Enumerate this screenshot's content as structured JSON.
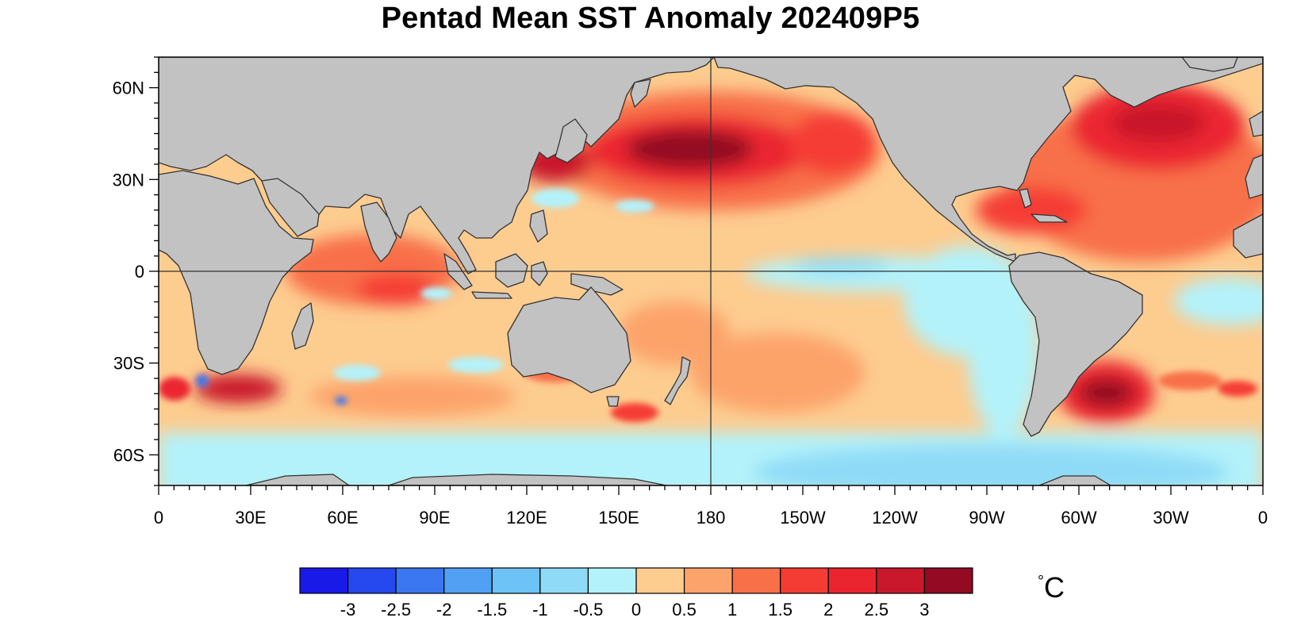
{
  "title": "Pentad Mean SST Anomaly 202409P5",
  "lat_labels": [
    "60N",
    "30N",
    "0",
    "30S",
    "60S"
  ],
  "lon_labels": [
    "0",
    "30E",
    "60E",
    "90E",
    "120E",
    "150E",
    "180",
    "150W",
    "120W",
    "90W",
    "60W",
    "30W",
    "0"
  ],
  "colorbar": {
    "labels": [
      "-3",
      "-2.5",
      "-2",
      "-1.5",
      "-1",
      "-0.5",
      "0",
      "0.5",
      "1",
      "1.5",
      "2",
      "2.5",
      "3"
    ],
    "colors": [
      "#1919e8",
      "#2549ee",
      "#3a77f0",
      "#51a0f4",
      "#6dc2f6",
      "#8fdbf7",
      "#b3f2fa",
      "#fdcc8f",
      "#fca36b",
      "#f87048",
      "#f53c34",
      "#eb2530",
      "#c9182b",
      "#930a22"
    ],
    "unit_symbol": "°",
    "unit_letter": "C"
  },
  "colors": {
    "land": "#c2c2c2",
    "coast": "#333333"
  }
}
